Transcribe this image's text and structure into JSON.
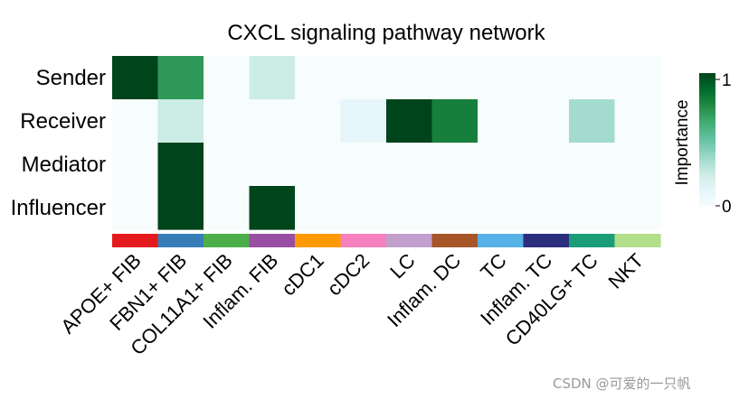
{
  "chart_data": {
    "type": "heatmap",
    "title": "CXCL signaling pathway network",
    "rows": [
      "Sender",
      "Receiver",
      "Mediator",
      "Influencer"
    ],
    "columns": [
      "APOE+ FIB",
      "FBN1+ FIB",
      "COL11A1+ FIB",
      "Inflam. FIB",
      "cDC1",
      "cDC2",
      "LC",
      "Inflam. DC",
      "TC",
      "Inflam. TC",
      "CD40LG+ TC",
      "NKT"
    ],
    "values": [
      [
        1.0,
        0.7,
        0.0,
        0.25,
        0.0,
        0.0,
        0.0,
        0.0,
        0.0,
        0.0,
        0.0,
        0.0
      ],
      [
        0.0,
        0.25,
        0.0,
        0.0,
        0.0,
        0.12,
        1.0,
        0.8,
        0.0,
        0.0,
        0.35,
        0.0
      ],
      [
        0.0,
        1.0,
        0.0,
        0.0,
        0.0,
        0.0,
        0.0,
        0.0,
        0.0,
        0.0,
        0.0,
        0.0
      ],
      [
        0.0,
        1.0,
        0.0,
        1.0,
        0.0,
        0.0,
        0.0,
        0.0,
        0.0,
        0.0,
        0.0,
        0.0
      ]
    ],
    "group_colors": [
      "#e41a1c",
      "#377eb8",
      "#4daf4a",
      "#984ea3",
      "#ff9a00",
      "#f781bf",
      "#c2a0ce",
      "#a65628",
      "#56b1e6",
      "#2b2d7d",
      "#1b9e77",
      "#b2df8a"
    ],
    "colorscale": [
      "#f7fcfd",
      "#e5f5f9",
      "#ccece6",
      "#99d8c9",
      "#66c2a4",
      "#41ae76",
      "#238b45",
      "#006d2c",
      "#00441b"
    ],
    "colorbar": {
      "label": "Importance",
      "min": 0,
      "max": 1,
      "ticks": [
        "0",
        "1"
      ]
    }
  },
  "watermark": "CSDN @可爱的一只帆"
}
